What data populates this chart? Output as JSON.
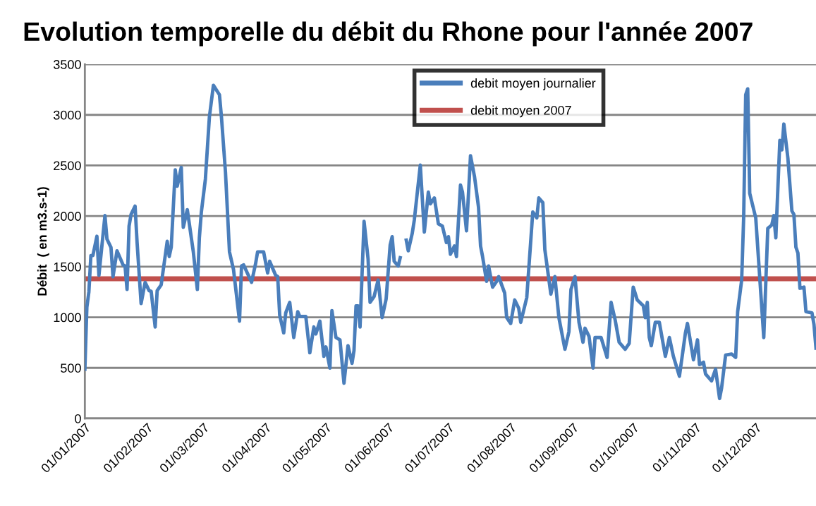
{
  "chart_data": {
    "type": "line",
    "title": "Evolution temporelle du débit du Rhone pour l'année 2007",
    "ylabel": "Débit  ( en m3.s-1)",
    "x": [
      "2007-01-01",
      "2007-01-02",
      "2007-01-03",
      "2007-01-04",
      "2007-01-05",
      "2007-01-07",
      "2007-01-08",
      "2007-01-11",
      "2007-01-12",
      "2007-01-14",
      "2007-01-15",
      "2007-01-17",
      "2007-01-20",
      "2007-01-21",
      "2007-01-22",
      "2007-01-23",
      "2007-01-24",
      "2007-01-26",
      "2007-01-27",
      "2007-01-29",
      "2007-01-31",
      "2007-02-02",
      "2007-02-03",
      "2007-02-05",
      "2007-02-06",
      "2007-02-08",
      "2007-02-11",
      "2007-02-12",
      "2007-02-13",
      "2007-02-15",
      "2007-02-16",
      "2007-02-18",
      "2007-02-19",
      "2007-02-21",
      "2007-02-24",
      "2007-02-26",
      "2007-02-27",
      "2007-02-28",
      "2007-03-02",
      "2007-03-04",
      "2007-03-06",
      "2007-03-09",
      "2007-03-10",
      "2007-03-12",
      "2007-03-14",
      "2007-03-16",
      "2007-03-19",
      "2007-03-20",
      "2007-03-21",
      "2007-03-25",
      "2007-03-27",
      "2007-03-28",
      "2007-03-31",
      "2007-04-02",
      "2007-04-03",
      "2007-04-06",
      "2007-04-07",
      "2007-04-08",
      "2007-04-10",
      "2007-04-11",
      "2007-04-13",
      "2007-04-15",
      "2007-04-17",
      "2007-04-18",
      "2007-04-21",
      "2007-04-23",
      "2007-04-25",
      "2007-04-26",
      "2007-04-28",
      "2007-04-30",
      "2007-05-01",
      "2007-05-03",
      "2007-05-04",
      "2007-05-06",
      "2007-05-08",
      "2007-05-10",
      "2007-05-12",
      "2007-05-14",
      "2007-05-15",
      "2007-05-16",
      "2007-05-17",
      "2007-05-18",
      "2007-05-20",
      "2007-05-22",
      "2007-05-23",
      "2007-05-25",
      "2007-05-27",
      "2007-05-29",
      "2007-05-31",
      "2007-06-02",
      "2007-06-03",
      "2007-06-04",
      "2007-06-06",
      "2007-06-07",
      "2007-06-08",
      "2007-06-10",
      "2007-06-11",
      "2007-06-13",
      "2007-06-14",
      "2007-06-17",
      "2007-06-19",
      "2007-06-21",
      "2007-06-22",
      "2007-06-24",
      "2007-06-26",
      "2007-06-28",
      "2007-06-30",
      "2007-07-01",
      "2007-07-02",
      "2007-07-04",
      "2007-07-05",
      "2007-07-07",
      "2007-07-08",
      "2007-07-10",
      "2007-07-12",
      "2007-07-14",
      "2007-07-16",
      "2007-07-17",
      "2007-07-18",
      "2007-07-20",
      "2007-07-21",
      "2007-07-23",
      "2007-07-25",
      "2007-07-26",
      "2007-07-29",
      "2007-07-30",
      "2007-08-01",
      "2007-08-03",
      "2007-08-05",
      "2007-08-06",
      "2007-08-09",
      "2007-08-12",
      "2007-08-14",
      "2007-08-15",
      "2007-08-17",
      "2007-08-18",
      "2007-08-21",
      "2007-08-23",
      "2007-08-25",
      "2007-08-28",
      "2007-08-30",
      "2007-08-31",
      "2007-09-02",
      "2007-09-04",
      "2007-09-06",
      "2007-09-07",
      "2007-09-09",
      "2007-09-11",
      "2007-09-12",
      "2007-09-15",
      "2007-09-18",
      "2007-09-20",
      "2007-09-22",
      "2007-09-24",
      "2007-09-27",
      "2007-09-29",
      "2007-10-01",
      "2007-10-03",
      "2007-10-06",
      "2007-10-07",
      "2007-10-08",
      "2007-10-09",
      "2007-10-10",
      "2007-10-12",
      "2007-10-14",
      "2007-10-17",
      "2007-10-19",
      "2007-10-21",
      "2007-10-24",
      "2007-10-27",
      "2007-10-28",
      "2007-10-31",
      "2007-11-02",
      "2007-11-03",
      "2007-11-05",
      "2007-11-06",
      "2007-11-09",
      "2007-11-11",
      "2007-11-13",
      "2007-11-14",
      "2007-11-16",
      "2007-11-19",
      "2007-11-21",
      "2007-11-22",
      "2007-11-24",
      "2007-11-25",
      "2007-11-26",
      "2007-11-27",
      "2007-11-28",
      "2007-12-01",
      "2007-12-05",
      "2007-12-07",
      "2007-12-09",
      "2007-12-10",
      "2007-12-11",
      "2007-12-13",
      "2007-12-14",
      "2007-12-15",
      "2007-12-17",
      "2007-12-19",
      "2007-12-20",
      "2007-12-21",
      "2007-12-22",
      "2007-12-23",
      "2007-12-25",
      "2007-12-26",
      "2007-12-29",
      "2007-12-30",
      "2007-12-31"
    ],
    "series": [
      {
        "name": "debit moyen journalier",
        "color": "#4a7ebb",
        "values": [
          487,
          1100,
          1250,
          1610,
          1610,
          1800,
          1414,
          2005,
          1773,
          1690,
          1400,
          1657,
          1518,
          1507,
          1275,
          1900,
          2016,
          2098,
          1738,
          1136,
          1345,
          1263,
          1256,
          904,
          1263,
          1321,
          1750,
          1600,
          1692,
          2457,
          2295,
          2480,
          1889,
          2063,
          1646,
          1275,
          1785,
          2040,
          2364,
          2979,
          3292,
          3199,
          2979,
          2434,
          1646,
          1472,
          962,
          1507,
          1518,
          1345,
          1530,
          1646,
          1646,
          1437,
          1553,
          1414,
          1402,
          1020,
          846,
          1043,
          1147,
          800,
          1055,
          1008,
          1008,
          649,
          904,
          835,
          962,
          614,
          707,
          498,
          1066,
          800,
          777,
          348,
          719,
          545,
          672,
          1113,
          1113,
          904,
          1947,
          1576,
          1147,
          1205,
          1368,
          997,
          1182,
          1715,
          1796,
          1553,
          1507,
          1588,
          null,
          1762,
          1657,
          1831,
          1959,
          2503,
          1842,
          2237,
          2121,
          2179,
          1924,
          1901,
          1738,
          1796,
          1623,
          1704,
          1600,
          2306,
          2237,
          1854,
          2596,
          2388,
          2086,
          1704,
          1600,
          1356,
          1507,
          1298,
          1356,
          1402,
          1240,
          997,
          939,
          1171,
          1089,
          950,
          1194,
          2040,
          1982,
          2179,
          2133,
          1669,
          1229,
          1402,
          997,
          684,
          858,
          1275,
          1402,
          950,
          753,
          892,
          811,
          498,
          800,
          800,
          603,
          1147,
          974,
          753,
          684,
          742,
          1298,
          1171,
          1113,
          997,
          1147,
          800,
          719,
          950,
          950,
          614,
          800,
          614,
          417,
          846,
          939,
          580,
          777,
          533,
          556,
          440,
          371,
          487,
          197,
          301,
          626,
          637,
          603,
          1055,
          1368,
          1994,
          3199,
          3257,
          2225,
          1982,
          800,
          1878,
          1912,
          2005,
          1785,
          2747,
          2654,
          2909,
          2573,
          2051,
          2016,
          1692,
          1634,
          1286,
          1298,
          1055,
          1043,
          927,
          695
        ]
      }
    ],
    "ref_lines": [
      {
        "axis": "y",
        "value": 1380,
        "label": "debit moyen 2007",
        "color": "#c0504d"
      }
    ],
    "xlim": [
      "2007-01-01",
      "2007-12-31"
    ],
    "xticks": [
      {
        "value": "2007-01-01",
        "label": "01/01/2007"
      },
      {
        "value": "2007-02-01",
        "label": "01/02/2007"
      },
      {
        "value": "2007-03-01",
        "label": "01/03/2007"
      },
      {
        "value": "2007-04-01",
        "label": "01/04/2007"
      },
      {
        "value": "2007-05-01",
        "label": "01/05/2007"
      },
      {
        "value": "2007-06-01",
        "label": "01/06/2007"
      },
      {
        "value": "2007-07-01",
        "label": "01/07/2007"
      },
      {
        "value": "2007-08-01",
        "label": "01/08/2007"
      },
      {
        "value": "2007-09-01",
        "label": "01/09/2007"
      },
      {
        "value": "2007-10-01",
        "label": "01/10/2007"
      },
      {
        "value": "2007-11-01",
        "label": "01/11/2007"
      },
      {
        "value": "2007-12-01",
        "label": "01/12/2007"
      }
    ],
    "ylim": [
      0,
      3500
    ],
    "yticks": [
      0,
      500,
      1000,
      1500,
      2000,
      2500,
      3000,
      3500
    ],
    "grid": "y",
    "legend": "top",
    "marker": "none",
    "line_style": "solid"
  }
}
